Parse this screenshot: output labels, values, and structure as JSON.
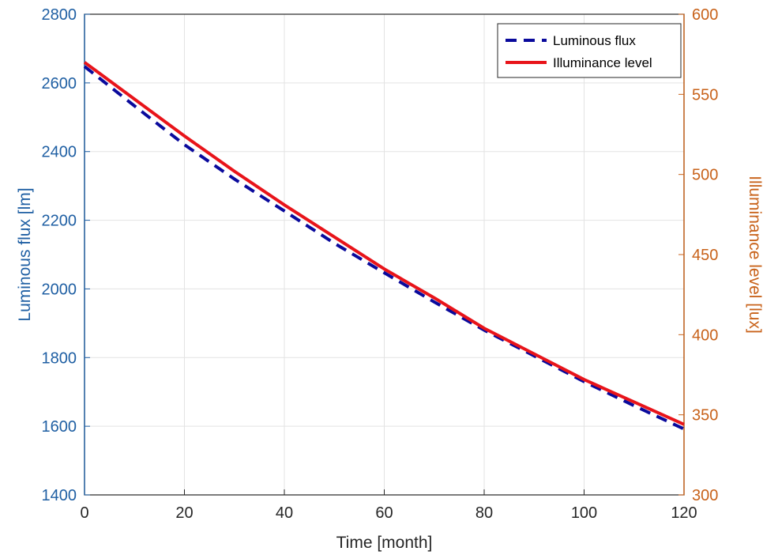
{
  "chart_data": {
    "type": "line",
    "x": [
      0,
      10,
      20,
      30,
      40,
      50,
      60,
      70,
      80,
      90,
      100,
      110,
      120
    ],
    "series": [
      {
        "name": "Luminous flux",
        "axis": "left",
        "style": "dashed",
        "color": "#0a0a9c",
        "values": [
          2648,
          2533,
          2420,
          2320,
          2227,
          2133,
          2047,
          1962,
          1880,
          1805,
          1730,
          1660,
          1592
        ]
      },
      {
        "name": "Illuminance level",
        "axis": "right",
        "style": "solid",
        "color": "#e8141a",
        "values": [
          570,
          547,
          524,
          502,
          481,
          461,
          441,
          423,
          404,
          388,
          372,
          358,
          344
        ]
      }
    ],
    "xlabel": "Time [month]",
    "ylabel_left": "Luminous flux [lm]",
    "ylabel_right": "Illuminance level [lux]",
    "xlim": [
      0,
      120
    ],
    "ylim_left": [
      1400,
      2800
    ],
    "ylim_right": [
      300,
      600
    ],
    "x_ticks": [
      0,
      20,
      40,
      60,
      80,
      100,
      120
    ],
    "y_left_ticks": [
      1400,
      1600,
      1800,
      2000,
      2200,
      2400,
      2600,
      2800
    ],
    "y_right_ticks": [
      300,
      350,
      400,
      450,
      500,
      550,
      600
    ],
    "grid": true,
    "legend": "top-right",
    "colors": {
      "left_axis": "#1f5fa3",
      "right_axis": "#c8621a",
      "bottom_axis": "#262626",
      "grid": "#e3e3e3"
    }
  }
}
